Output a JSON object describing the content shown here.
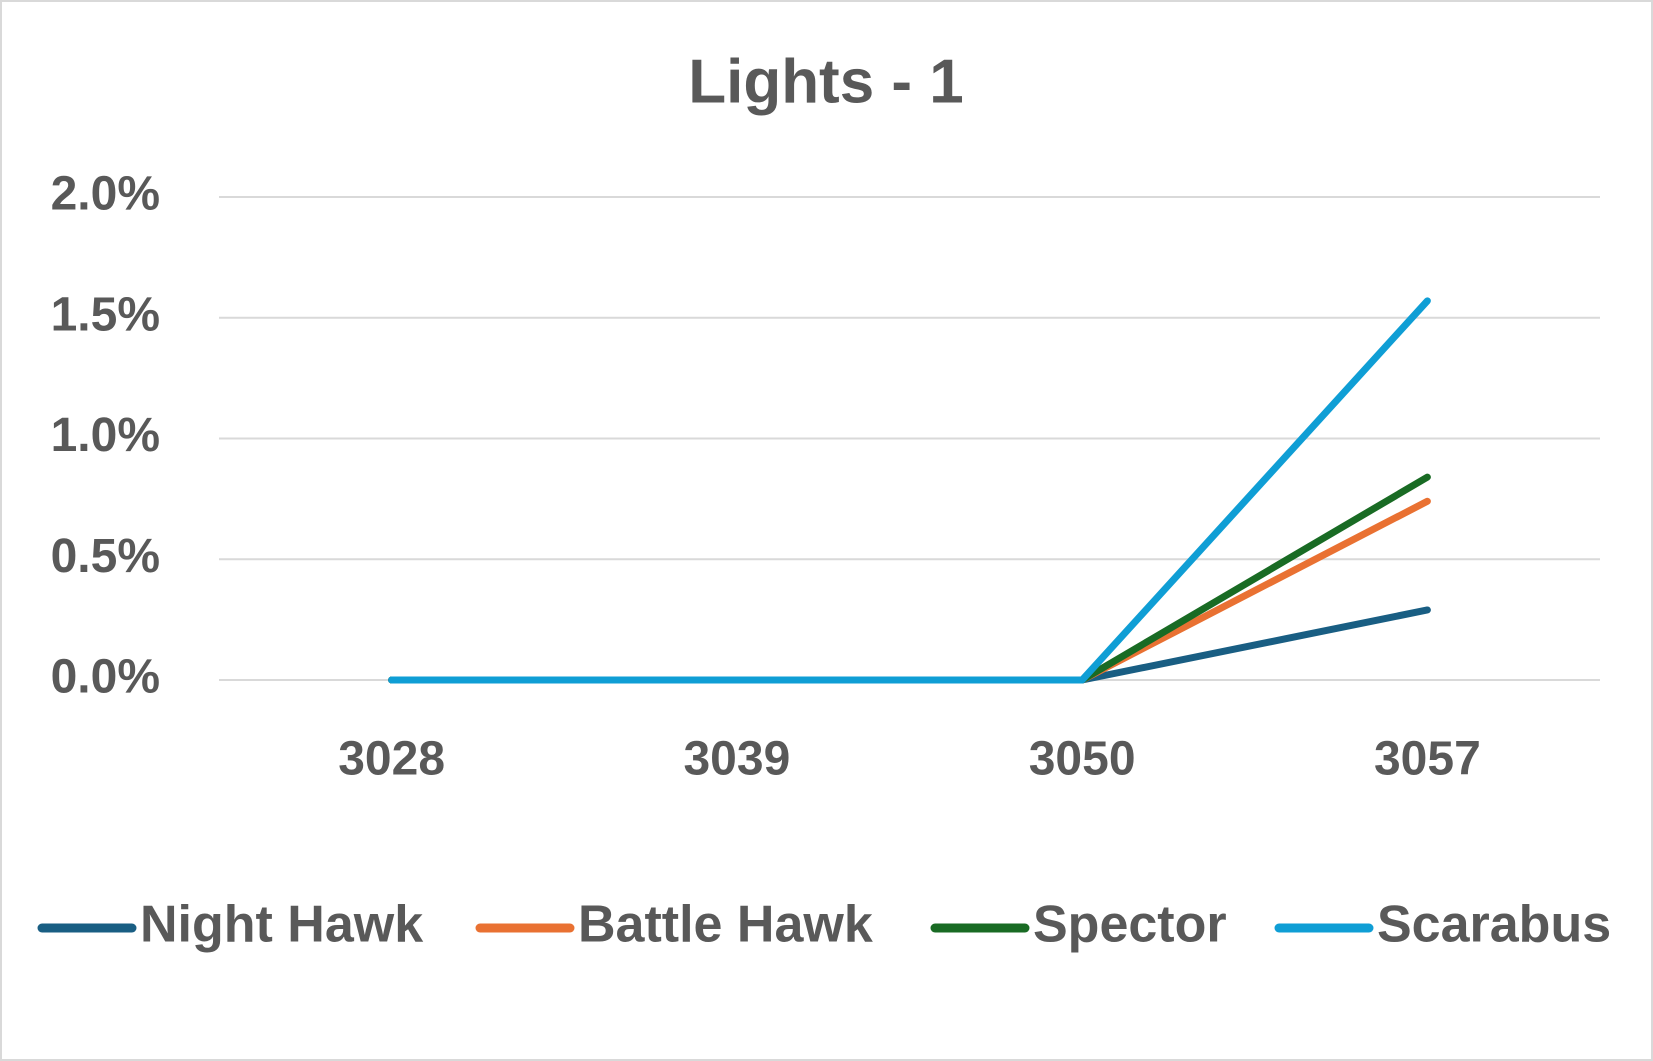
{
  "chart_data": {
    "type": "line",
    "title": "Lights - 1",
    "categories": [
      "3028",
      "3039",
      "3050",
      "3057"
    ],
    "series": [
      {
        "name": "Night Hawk",
        "color": "#195e83",
        "values": [
          0,
          0,
          0,
          0.29
        ]
      },
      {
        "name": "Battle Hawk",
        "color": "#e97132",
        "values": [
          0,
          0,
          0,
          0.74
        ]
      },
      {
        "name": "Spector",
        "color": "#196b24",
        "values": [
          0,
          0,
          0,
          0.84
        ]
      },
      {
        "name": "Scarabus",
        "color": "#0f9ed5",
        "values": [
          0,
          0,
          0,
          1.57
        ]
      }
    ],
    "ylim": [
      0,
      2
    ],
    "yticks": [
      {
        "value": 0,
        "label": "0.0%"
      },
      {
        "value": 0.5,
        "label": "0.5%"
      },
      {
        "value": 1,
        "label": "1.0%"
      },
      {
        "value": 1.5,
        "label": "1.5%"
      },
      {
        "value": 2,
        "label": "2.0%"
      }
    ],
    "grid": true,
    "legend": "bottom"
  }
}
